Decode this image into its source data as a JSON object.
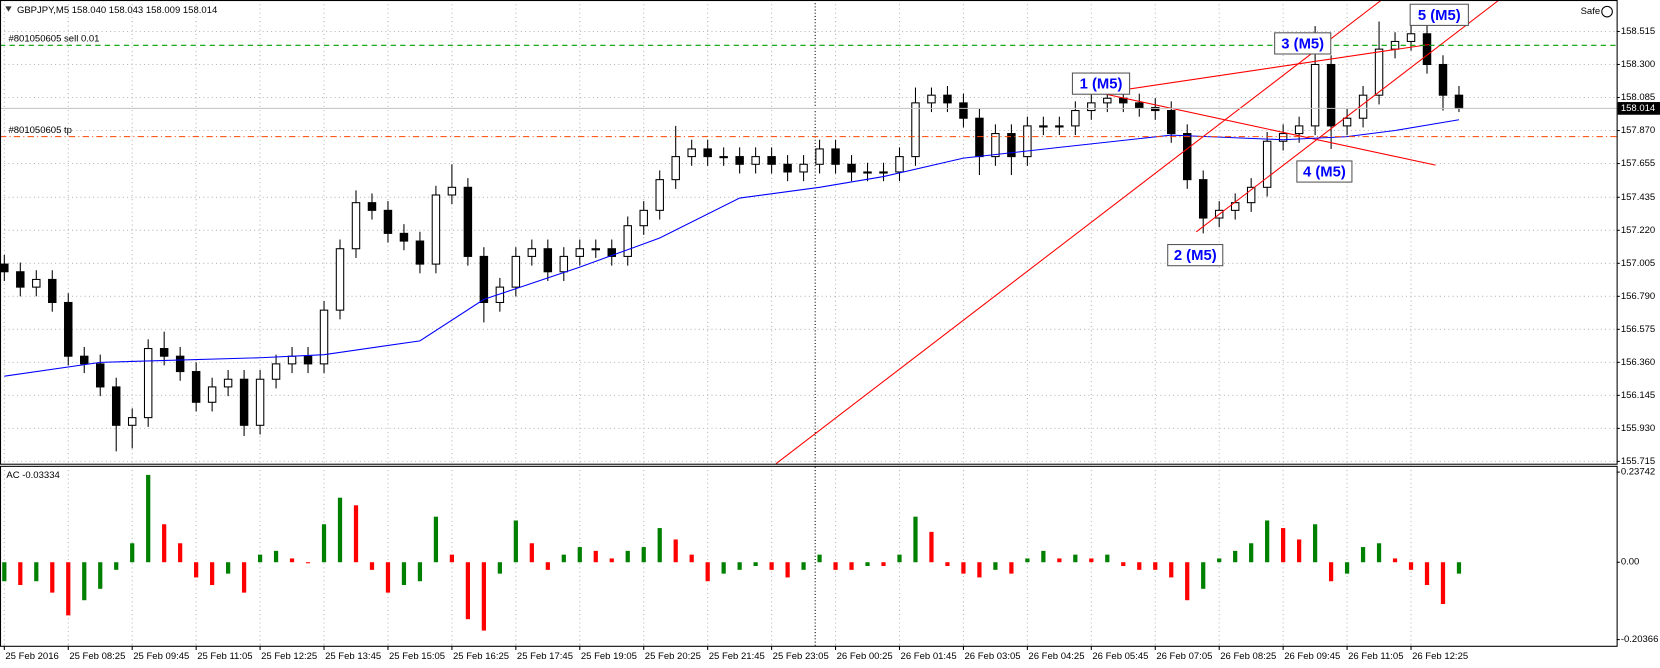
{
  "chart_data": [
    {
      "type": "candlestick",
      "title": "GBPJPY,M5  158.040 158.043 158.009 158.014",
      "status": "Safe",
      "color": "#000000",
      "up_fill": "#ffffff",
      "open": [
        157.0,
        156.95,
        156.85,
        156.9,
        156.75,
        156.4,
        156.35,
        156.2,
        155.95,
        156.0,
        156.45,
        156.4,
        156.3,
        156.1,
        156.2,
        156.25,
        155.95,
        156.25,
        156.35,
        156.4,
        156.35,
        156.7,
        157.1,
        157.4,
        157.35,
        157.2,
        157.15,
        157.0,
        157.45,
        157.5,
        157.05,
        156.75,
        156.85,
        157.05,
        157.1,
        156.95,
        157.05,
        157.1,
        157.1,
        157.05,
        157.25,
        157.35,
        157.55,
        157.7,
        157.75,
        157.7,
        157.7,
        157.65,
        157.7,
        157.65,
        157.6,
        157.65,
        157.75,
        157.65,
        157.6,
        157.6,
        157.6,
        157.7,
        158.05,
        158.1,
        158.05,
        157.95,
        157.7,
        157.85,
        157.7,
        157.9,
        157.9,
        157.9,
        158.0,
        158.05,
        158.08,
        158.05,
        158.02,
        158.0,
        157.85,
        157.55,
        157.3,
        157.35,
        157.4,
        157.5,
        157.8,
        157.85,
        157.9,
        158.3,
        157.9,
        157.95,
        158.1,
        158.4,
        158.45,
        158.5,
        158.3,
        158.1
      ],
      "high": [
        157.06,
        157.01,
        156.96,
        156.96,
        156.81,
        156.46,
        156.41,
        156.26,
        156.06,
        156.51,
        156.56,
        156.46,
        156.36,
        156.26,
        156.31,
        156.31,
        156.31,
        156.41,
        156.46,
        156.46,
        156.76,
        157.16,
        157.48,
        157.46,
        157.41,
        157.26,
        157.21,
        157.51,
        157.65,
        157.56,
        157.11,
        156.91,
        157.11,
        157.16,
        157.16,
        157.11,
        157.16,
        157.16,
        157.16,
        157.31,
        157.41,
        157.61,
        157.9,
        157.81,
        157.81,
        157.76,
        157.76,
        157.76,
        157.76,
        157.71,
        157.71,
        157.81,
        157.81,
        157.71,
        157.66,
        157.66,
        157.76,
        158.15,
        158.15,
        158.16,
        158.11,
        158.01,
        157.91,
        157.91,
        157.96,
        157.96,
        157.96,
        158.06,
        158.11,
        158.15,
        158.14,
        158.11,
        158.08,
        158.06,
        157.91,
        157.61,
        157.41,
        157.46,
        157.56,
        157.86,
        157.91,
        157.96,
        158.55,
        158.36,
        158.01,
        158.16,
        158.58,
        158.51,
        158.62,
        158.56,
        158.36,
        158.16
      ],
      "low": [
        156.89,
        156.79,
        156.79,
        156.69,
        156.34,
        156.29,
        156.14,
        155.78,
        155.8,
        155.94,
        156.34,
        156.24,
        156.04,
        156.04,
        156.14,
        155.88,
        155.89,
        156.19,
        156.29,
        156.29,
        156.29,
        156.64,
        157.04,
        157.29,
        157.14,
        157.09,
        156.94,
        156.94,
        157.39,
        156.99,
        156.62,
        156.69,
        156.79,
        156.99,
        156.89,
        156.89,
        156.99,
        157.04,
        156.99,
        156.99,
        157.19,
        157.29,
        157.49,
        157.64,
        157.64,
        157.64,
        157.59,
        157.59,
        157.59,
        157.54,
        157.54,
        157.59,
        157.59,
        157.54,
        157.54,
        157.54,
        157.54,
        157.64,
        157.99,
        157.99,
        157.89,
        157.58,
        157.64,
        157.58,
        157.64,
        157.84,
        157.84,
        157.84,
        157.94,
        157.99,
        157.99,
        157.96,
        157.94,
        157.79,
        157.49,
        157.2,
        157.24,
        157.29,
        157.34,
        157.44,
        157.74,
        157.79,
        157.84,
        157.75,
        157.84,
        157.89,
        158.04,
        158.34,
        158.39,
        158.24,
        158.0,
        157.99
      ],
      "close": [
        156.95,
        156.85,
        156.9,
        156.75,
        156.4,
        156.35,
        156.2,
        155.95,
        156.0,
        156.45,
        156.4,
        156.3,
        156.1,
        156.2,
        156.25,
        155.95,
        156.25,
        156.35,
        156.4,
        156.35,
        156.7,
        157.1,
        157.4,
        157.35,
        157.2,
        157.15,
        157.0,
        157.45,
        157.5,
        157.05,
        156.75,
        156.85,
        157.05,
        157.1,
        156.95,
        157.05,
        157.1,
        157.1,
        157.05,
        157.25,
        157.35,
        157.55,
        157.7,
        157.75,
        157.7,
        157.7,
        157.65,
        157.7,
        157.65,
        157.6,
        157.65,
        157.75,
        157.65,
        157.6,
        157.6,
        157.6,
        157.7,
        158.05,
        158.1,
        158.05,
        157.95,
        157.7,
        157.85,
        157.7,
        157.9,
        157.9,
        157.9,
        158.0,
        158.05,
        158.08,
        158.05,
        158.02,
        158.0,
        157.85,
        157.55,
        157.3,
        157.35,
        157.4,
        157.5,
        157.8,
        157.85,
        157.9,
        158.3,
        157.9,
        157.95,
        158.1,
        158.4,
        158.45,
        158.5,
        158.3,
        158.1,
        158.014
      ],
      "overlays": [
        {
          "color": "#0000ff",
          "x": [
            0,
            6,
            16,
            20,
            26,
            30,
            36,
            41,
            46,
            51,
            55,
            60,
            66,
            73,
            80,
            84,
            87,
            91
          ],
          "values": [
            156.27,
            156.36,
            156.39,
            156.41,
            156.5,
            156.77,
            156.98,
            157.17,
            157.43,
            157.5,
            157.57,
            157.69,
            157.76,
            157.84,
            157.81,
            157.83,
            157.87,
            157.94
          ]
        }
      ],
      "order_lines": [
        {
          "label": "#801050605 sell 0.01",
          "value": 158.425,
          "color": "#00a000"
        },
        {
          "label": "#801050605 tp",
          "value": 157.83,
          "color": "#ff4500"
        }
      ],
      "annotations": [
        {
          "text": "1 (M5)"
        },
        {
          "text": "2 (M5)"
        },
        {
          "text": "3 (M5)"
        },
        {
          "text": "4 (M5)"
        },
        {
          "text": "5 (M5)"
        }
      ],
      "xlim": [
        -0.27,
        100.86
      ],
      "xticks": [
        {
          "value": 0,
          "label": "25 Feb 2016"
        },
        {
          "value": 4,
          "label": "25 Feb 08:25"
        },
        {
          "value": 8,
          "label": "25 Feb 09:45"
        },
        {
          "value": 12,
          "label": "25 Feb 11:05"
        },
        {
          "value": 16,
          "label": "25 Feb 12:25"
        },
        {
          "value": 20,
          "label": "25 Feb 13:45"
        },
        {
          "value": 24,
          "label": "25 Feb 15:05"
        },
        {
          "value": 28,
          "label": "25 Feb 16:25"
        },
        {
          "value": 32,
          "label": "25 Feb 17:45"
        },
        {
          "value": 36,
          "label": "25 Feb 19:05"
        },
        {
          "value": 40,
          "label": "25 Feb 20:25"
        },
        {
          "value": 44,
          "label": "25 Feb 21:45"
        },
        {
          "value": 48,
          "label": "25 Feb 23:05"
        },
        {
          "value": 52,
          "label": "26 Feb 00:25"
        },
        {
          "value": 56,
          "label": "26 Feb 01:45"
        },
        {
          "value": 60,
          "label": "26 Feb 03:05"
        },
        {
          "value": 64,
          "label": "26 Feb 04:25"
        },
        {
          "value": 68,
          "label": "26 Feb 05:45"
        },
        {
          "value": 72,
          "label": "26 Feb 07:05"
        },
        {
          "value": 76,
          "label": "26 Feb 08:25"
        },
        {
          "value": 80,
          "label": "26 Feb 09:45"
        },
        {
          "value": 84,
          "label": "26 Feb 11:05"
        },
        {
          "value": 88,
          "label": "26 Feb 12:25"
        }
      ],
      "ylim": [
        155.7,
        158.72
      ],
      "yticks": [
        158.515,
        {
          "value": 158.3,
          "label": "158.300"
        },
        158.085,
        {
          "value": 157.87,
          "label": "157.870"
        },
        157.655,
        157.435,
        {
          "value": 157.22,
          "label": "157.220"
        },
        157.005,
        {
          "value": 156.79,
          "label": "156.790"
        },
        156.575,
        {
          "value": 156.36,
          "label": "156.360"
        },
        156.145,
        {
          "value": 155.93,
          "label": "155.930"
        },
        155.715
      ],
      "grid": true
    },
    {
      "type": "bar",
      "title": "AC -0.03334",
      "up_color": "#008000",
      "down_color": "#ff0000",
      "values": [
        -0.05,
        -0.06,
        -0.05,
        -0.08,
        -0.14,
        -0.1,
        -0.07,
        -0.02,
        0.05,
        0.23,
        0.1,
        0.05,
        -0.04,
        -0.06,
        -0.03,
        -0.08,
        0.02,
        0.03,
        0.01,
        0.0,
        0.1,
        0.17,
        0.15,
        -0.02,
        -0.08,
        -0.06,
        -0.05,
        0.12,
        0.02,
        -0.15,
        -0.18,
        -0.03,
        0.11,
        0.05,
        -0.02,
        0.02,
        0.04,
        0.03,
        0.01,
        0.03,
        0.04,
        0.09,
        0.06,
        0.02,
        -0.05,
        -0.03,
        -0.02,
        -0.01,
        -0.02,
        -0.04,
        -0.02,
        0.02,
        -0.02,
        -0.02,
        -0.01,
        -0.01,
        0.02,
        0.12,
        0.08,
        -0.01,
        -0.03,
        -0.04,
        -0.02,
        -0.03,
        0.01,
        0.03,
        0.01,
        0.02,
        0.01,
        0.02,
        -0.01,
        -0.02,
        -0.02,
        -0.04,
        -0.1,
        -0.07,
        0.01,
        0.03,
        0.05,
        0.11,
        0.09,
        0.06,
        0.1,
        -0.05,
        -0.03,
        0.04,
        0.05,
        0.01,
        -0.02,
        -0.06,
        -0.11,
        -0.03
      ],
      "ylim": [
        -0.22,
        0.254
      ],
      "yticks": [
        0.23742,
        {
          "value": 0,
          "label": "0.00"
        },
        -0.20366
      ]
    }
  ]
}
